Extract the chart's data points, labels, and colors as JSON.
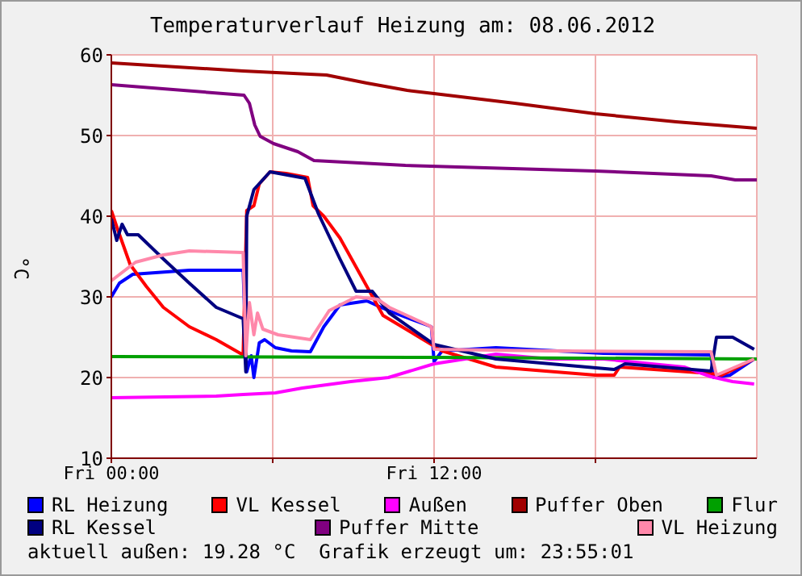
{
  "chart_data": {
    "type": "line",
    "title": "Temperaturverlauf Heizung am: 08.06.2012",
    "ylabel": "°C",
    "annotations": [
      "aktuell außen: 19.28 °C  Grafik erzeugt um: 23:55:01"
    ],
    "xlim": [
      "2012-06-08T00:00",
      "2012-06-09T00:00"
    ],
    "xticks": [
      {
        "value": "2012-06-08T00:00",
        "label": "Fri 00:00"
      },
      {
        "value": "2012-06-08T06:00",
        "label": null
      },
      {
        "value": "2012-06-08T12:00",
        "label": "Fri 12:00"
      },
      {
        "value": "2012-06-08T18:00",
        "label": null
      }
    ],
    "ylim": [
      10,
      60
    ],
    "yticks": [
      10,
      20,
      30,
      40,
      50,
      60
    ],
    "grid": true,
    "legend": "bottom",
    "marker": "none",
    "line_style": "solid",
    "series": [
      {
        "name": "RL Heizung",
        "color": "#0000ff",
        "x": [
          "2012-06-08T00:00",
          "2012-06-08T00:18",
          "2012-06-08T00:48",
          "2012-06-08T02:54",
          "2012-06-08T04:54",
          "2012-06-08T05:02",
          "2012-06-08T05:12",
          "2012-06-08T05:18",
          "2012-06-08T05:30",
          "2012-06-08T05:42",
          "2012-06-08T06:06",
          "2012-06-08T06:42",
          "2012-06-08T07:24",
          "2012-06-08T07:54",
          "2012-06-08T08:30",
          "2012-06-08T09:30",
          "2012-06-08T10:18",
          "2012-06-08T11:54",
          "2012-06-08T12:00",
          "2012-06-08T12:18",
          "2012-06-08T14:18",
          "2012-06-08T18:18",
          "2012-06-08T22:18",
          "2012-06-08T22:24",
          "2012-06-08T23:00",
          "2012-06-08T23:54"
        ],
        "values": [
          30,
          31.7,
          32.8,
          33.3,
          33.3,
          20.7,
          22.7,
          20,
          24.3,
          24.7,
          23.7,
          23.3,
          23.2,
          26.3,
          29,
          29.5,
          28.3,
          26.3,
          22,
          23.3,
          23.7,
          23,
          22.8,
          20,
          20.3,
          22.3
        ]
      },
      {
        "name": "VL Kessel",
        "color": "#ff0000",
        "x": [
          "2012-06-08T00:00",
          "2012-06-08T00:12",
          "2012-06-08T00:42",
          "2012-06-08T01:18",
          "2012-06-08T01:56",
          "2012-06-08T02:54",
          "2012-06-08T03:54",
          "2012-06-08T04:54",
          "2012-06-08T05:02",
          "2012-06-08T05:18",
          "2012-06-08T05:30",
          "2012-06-08T05:54",
          "2012-06-08T06:30",
          "2012-06-08T07:18",
          "2012-06-08T07:30",
          "2012-06-08T07:54",
          "2012-06-08T08:30",
          "2012-06-08T09:30",
          "2012-06-08T10:06",
          "2012-06-08T10:18",
          "2012-06-08T11:18",
          "2012-06-08T12:18",
          "2012-06-08T14:18",
          "2012-06-08T18:00",
          "2012-06-08T18:42",
          "2012-06-08T18:54",
          "2012-06-08T22:18",
          "2012-06-08T22:42",
          "2012-06-08T23:54"
        ],
        "values": [
          40.7,
          38.7,
          34,
          31.3,
          28.7,
          26.3,
          24.7,
          22.8,
          40.7,
          41.3,
          44,
          45.5,
          45.3,
          44.8,
          41.3,
          40,
          37.3,
          31.3,
          27.7,
          27.3,
          25.3,
          23.3,
          21.3,
          20.3,
          20.3,
          21.3,
          20.5,
          20.3,
          22.3
        ]
      },
      {
        "name": "Außen",
        "color": "#ff00ff",
        "x": [
          "2012-06-08T00:00",
          "2012-06-08T03:54",
          "2012-06-08T04:54",
          "2012-06-08T06:06",
          "2012-06-08T07:06",
          "2012-06-08T08:54",
          "2012-06-08T10:18",
          "2012-06-08T12:00",
          "2012-06-08T14:18",
          "2012-06-08T16:18",
          "2012-06-08T18:18",
          "2012-06-08T21:18",
          "2012-06-08T22:18",
          "2012-06-08T23:06",
          "2012-06-08T23:54"
        ],
        "values": [
          17.5,
          17.7,
          17.9,
          18.1,
          18.7,
          19.5,
          20,
          21.7,
          22.9,
          22.3,
          22.3,
          21.3,
          20.1,
          19.5,
          19.2
        ]
      },
      {
        "name": "Puffer Oben",
        "color": "#a00000",
        "x": [
          "2012-06-08T00:00",
          "2012-06-08T04:54",
          "2012-06-08T08:00",
          "2012-06-08T09:30",
          "2012-06-08T11:00",
          "2012-06-08T12:00",
          "2012-06-08T15:00",
          "2012-06-08T18:00",
          "2012-06-08T21:00",
          "2012-06-09T00:00"
        ],
        "values": [
          59,
          58,
          57.5,
          56.5,
          55.6,
          55.2,
          54,
          52.7,
          51.7,
          50.9
        ]
      },
      {
        "name": "Flur",
        "color": "#00a000",
        "x": [
          "2012-06-08T00:00",
          "2012-06-08T12:00",
          "2012-06-09T00:00"
        ],
        "values": [
          22.6,
          22.5,
          22.3
        ]
      },
      {
        "name": "RL Kessel",
        "color": "#000080",
        "x": [
          "2012-06-08T00:00",
          "2012-06-08T00:12",
          "2012-06-08T00:24",
          "2012-06-08T00:36",
          "2012-06-08T01:00",
          "2012-06-08T01:56",
          "2012-06-08T02:54",
          "2012-06-08T03:54",
          "2012-06-08T04:54",
          "2012-06-08T05:00",
          "2012-06-08T05:02",
          "2012-06-08T05:18",
          "2012-06-08T05:54",
          "2012-06-08T07:12",
          "2012-06-08T07:42",
          "2012-06-08T08:30",
          "2012-06-08T09:06",
          "2012-06-08T09:42",
          "2012-06-08T10:20",
          "2012-06-08T12:00",
          "2012-06-08T14:18",
          "2012-06-08T18:42",
          "2012-06-08T19:06",
          "2012-06-08T22:18",
          "2012-06-08T22:30",
          "2012-06-08T23:06",
          "2012-06-08T23:54"
        ],
        "values": [
          39.7,
          37,
          39,
          37.7,
          37.7,
          34.7,
          31.7,
          28.7,
          27.3,
          20.7,
          40,
          43.3,
          45.5,
          44.7,
          40.3,
          34.7,
          30.7,
          30.7,
          28,
          24.1,
          22.3,
          21,
          21.7,
          20.8,
          25,
          25,
          23.5
        ]
      },
      {
        "name": "Puffer Mitte",
        "color": "#800080",
        "x": [
          "2012-06-08T00:00",
          "2012-06-08T04:56",
          "2012-06-08T05:08",
          "2012-06-08T05:20",
          "2012-06-08T05:32",
          "2012-06-08T06:02",
          "2012-06-08T06:56",
          "2012-06-08T07:32",
          "2012-06-08T10:56",
          "2012-06-08T18:00",
          "2012-06-08T22:18",
          "2012-06-08T23:12",
          "2012-06-09T00:00"
        ],
        "values": [
          56.3,
          55,
          54,
          51.3,
          49.9,
          49,
          48,
          46.9,
          46.3,
          45.6,
          45,
          44.5,
          44.5
        ]
      },
      {
        "name": "VL Heizung",
        "color": "#ff88aa",
        "x": [
          "2012-06-08T00:00",
          "2012-06-08T00:54",
          "2012-06-08T01:56",
          "2012-06-08T02:54",
          "2012-06-08T04:54",
          "2012-06-08T05:00",
          "2012-06-08T05:08",
          "2012-06-08T05:18",
          "2012-06-08T05:26",
          "2012-06-08T05:38",
          "2012-06-08T06:12",
          "2012-06-08T07:24",
          "2012-06-08T08:06",
          "2012-06-08T09:06",
          "2012-06-08T09:54",
          "2012-06-08T10:20",
          "2012-06-08T11:54",
          "2012-06-08T12:00",
          "2012-06-08T16:18",
          "2012-06-08T22:18",
          "2012-06-08T22:30",
          "2012-06-08T23:54"
        ],
        "values": [
          32,
          34.3,
          35.2,
          35.7,
          35.5,
          22.7,
          29.3,
          25.3,
          28,
          26,
          25.3,
          24.7,
          28.3,
          30,
          29.7,
          28.7,
          26.3,
          23.5,
          23.3,
          23.2,
          20.3,
          22.3
        ]
      }
    ]
  }
}
